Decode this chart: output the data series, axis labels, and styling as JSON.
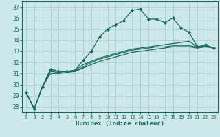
{
  "xlabel": "Humidex (Indice chaleur)",
  "xlim": [
    -0.5,
    23.5
  ],
  "ylim": [
    27.5,
    37.5
  ],
  "yticks": [
    28,
    29,
    30,
    31,
    32,
    33,
    34,
    35,
    36,
    37
  ],
  "xticks": [
    0,
    1,
    2,
    3,
    4,
    5,
    6,
    7,
    8,
    9,
    10,
    11,
    12,
    13,
    14,
    15,
    16,
    17,
    18,
    19,
    20,
    21,
    22,
    23
  ],
  "bg_color": "#cce8e8",
  "grid_color": "#aad0d0",
  "line_color": "#1a6b5a",
  "lines": [
    {
      "x": [
        0,
        1,
        2,
        3,
        4,
        5,
        6,
        7,
        8,
        9,
        10,
        11,
        12,
        13,
        14,
        15,
        16,
        17,
        18,
        19,
        20,
        21,
        22,
        23
      ],
      "y": [
        29.3,
        27.8,
        29.8,
        31.4,
        31.2,
        31.2,
        31.3,
        32.2,
        33.0,
        34.3,
        35.0,
        35.4,
        35.8,
        36.7,
        36.8,
        35.9,
        35.9,
        35.6,
        36.0,
        35.1,
        34.7,
        33.4,
        33.6,
        33.3
      ],
      "marker": true
    },
    {
      "x": [
        0,
        1,
        2,
        3,
        4,
        5,
        6,
        7,
        8,
        9,
        10,
        11,
        12,
        13,
        14,
        15,
        16,
        17,
        18,
        19,
        20,
        21,
        22,
        23
      ],
      "y": [
        29.3,
        27.8,
        29.8,
        31.4,
        31.2,
        31.2,
        31.3,
        31.8,
        32.1,
        32.4,
        32.6,
        32.8,
        33.0,
        33.2,
        33.3,
        33.4,
        33.5,
        33.6,
        33.7,
        33.8,
        33.9,
        33.4,
        33.5,
        33.3
      ],
      "marker": false
    },
    {
      "x": [
        0,
        1,
        2,
        3,
        4,
        5,
        6,
        7,
        8,
        9,
        10,
        11,
        12,
        13,
        14,
        15,
        16,
        17,
        18,
        19,
        20,
        21,
        22,
        23
      ],
      "y": [
        29.3,
        27.8,
        29.8,
        31.0,
        31.0,
        31.1,
        31.2,
        31.5,
        31.8,
        32.1,
        32.3,
        32.5,
        32.7,
        32.9,
        33.0,
        33.1,
        33.2,
        33.3,
        33.4,
        33.4,
        33.4,
        33.3,
        33.4,
        33.3
      ],
      "marker": false
    },
    {
      "x": [
        0,
        1,
        2,
        3,
        4,
        5,
        6,
        7,
        8,
        9,
        10,
        11,
        12,
        13,
        14,
        15,
        16,
        17,
        18,
        19,
        20,
        21,
        22,
        23
      ],
      "y": [
        29.3,
        27.8,
        29.8,
        31.2,
        31.1,
        31.2,
        31.2,
        31.6,
        32.0,
        32.3,
        32.5,
        32.7,
        32.9,
        33.1,
        33.2,
        33.3,
        33.4,
        33.4,
        33.5,
        33.5,
        33.5,
        33.4,
        33.5,
        33.3
      ],
      "marker": false
    }
  ]
}
